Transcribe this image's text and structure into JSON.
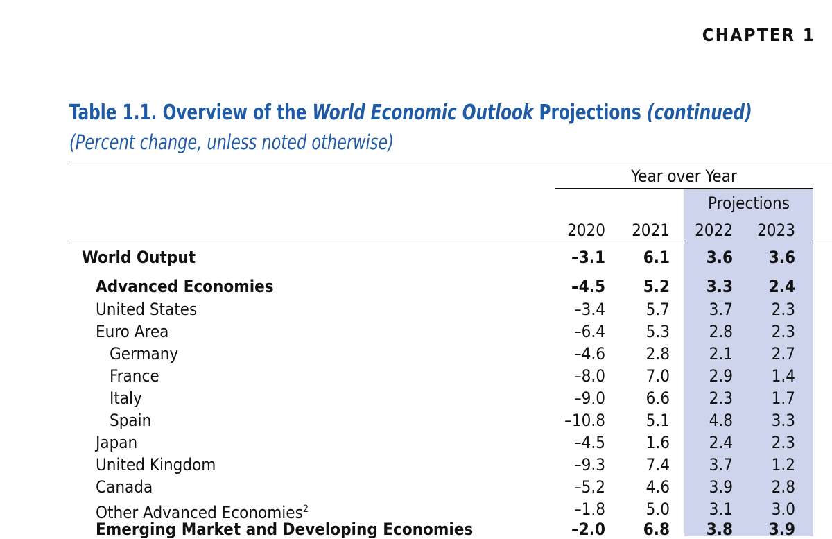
{
  "header": {
    "chapter": "CHAPTER 1"
  },
  "table": {
    "title_prefix": "Table 1.1. Overview of the ",
    "title_italic": "World Economic Outlook",
    "title_middle": " Projections ",
    "title_suffix": "(continued)",
    "subtitle": "(Percent change, unless noted otherwise)",
    "group_header": "Year over Year",
    "projections_header": "Projections",
    "columns": [
      "2020",
      "2021",
      "2022",
      "2023"
    ],
    "rows": [
      {
        "label": "World Output",
        "values": [
          "–3.1",
          "6.1",
          "3.6",
          "3.6"
        ],
        "level": 0,
        "bold": true
      },
      {
        "label": "Advanced Economies",
        "values": [
          "–4.5",
          "5.2",
          "3.3",
          "2.4"
        ],
        "level": 1,
        "bold": true
      },
      {
        "label": "United States",
        "values": [
          "–3.4",
          "5.7",
          "3.7",
          "2.3"
        ],
        "level": 1,
        "bold": false
      },
      {
        "label": "Euro Area",
        "values": [
          "–6.4",
          "5.3",
          "2.8",
          "2.3"
        ],
        "level": 1,
        "bold": false
      },
      {
        "label": "Germany",
        "values": [
          "–4.6",
          "2.8",
          "2.1",
          "2.7"
        ],
        "level": 2,
        "bold": false
      },
      {
        "label": "France",
        "values": [
          "–8.0",
          "7.0",
          "2.9",
          "1.4"
        ],
        "level": 2,
        "bold": false
      },
      {
        "label": "Italy",
        "values": [
          "–9.0",
          "6.6",
          "2.3",
          "1.7"
        ],
        "level": 2,
        "bold": false
      },
      {
        "label": "Spain",
        "values": [
          "–10.8",
          "5.1",
          "4.8",
          "3.3"
        ],
        "level": 2,
        "bold": false
      },
      {
        "label": "Japan",
        "values": [
          "–4.5",
          "1.6",
          "2.4",
          "2.3"
        ],
        "level": 1,
        "bold": false
      },
      {
        "label": "United Kingdom",
        "values": [
          "–9.3",
          "7.4",
          "3.7",
          "1.2"
        ],
        "level": 1,
        "bold": false
      },
      {
        "label": "Canada",
        "values": [
          "–5.2",
          "4.6",
          "3.9",
          "2.8"
        ],
        "level": 1,
        "bold": false
      },
      {
        "label": "Other Advanced Economies",
        "footnote": "2",
        "values": [
          "–1.8",
          "5.0",
          "3.1",
          "3.0"
        ],
        "level": 1,
        "bold": false
      }
    ],
    "partial_row": {
      "label": "Emerging Market and Developing Economies",
      "values": [
        "–2.0",
        "6.8",
        "3.8",
        "3.9"
      ]
    }
  },
  "colors": {
    "title": "#1f5aa6",
    "projection_shade": "#cdd4ec"
  }
}
